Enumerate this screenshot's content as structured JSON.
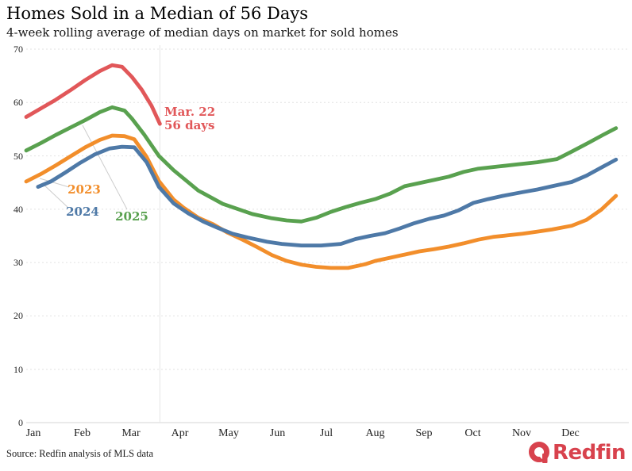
{
  "chart_data": {
    "type": "line",
    "title": "Homes Sold in a Median of 56 Days",
    "subtitle": "4-week rolling average of median days on market for sold homes",
    "xlabel": "",
    "ylabel": "",
    "ylim": [
      0,
      70
    ],
    "yticks": [
      0,
      10,
      20,
      30,
      40,
      50,
      60,
      70
    ],
    "x_months": [
      "Jan",
      "Feb",
      "Mar",
      "Apr",
      "May",
      "Jun",
      "Jul",
      "Aug",
      "Sep",
      "Oct",
      "Nov",
      "Dec"
    ],
    "x_unit": "months (0 = Jan 1, 12 = Dec 31)",
    "grid": "horizontal dotted gridlines; one vertical solid marker line at the latest data date",
    "legend_position": "inline colored year labels near the January-March portion of each line",
    "date_marker_month": 2.72,
    "series": [
      {
        "label": "2023",
        "color": "#F28E2B",
        "points": [
          [
            0,
            45.2
          ],
          [
            0.3,
            46.6
          ],
          [
            0.6,
            48.2
          ],
          [
            0.9,
            49.9
          ],
          [
            1.2,
            51.6
          ],
          [
            1.5,
            53.0
          ],
          [
            1.75,
            53.8
          ],
          [
            2.0,
            53.7
          ],
          [
            2.2,
            53.1
          ],
          [
            2.45,
            49.8
          ],
          [
            2.7,
            45.3
          ],
          [
            3.0,
            41.8
          ],
          [
            3.2,
            40.3
          ],
          [
            3.5,
            38.4
          ],
          [
            3.8,
            37.2
          ],
          [
            4.1,
            35.6
          ],
          [
            4.4,
            34.3
          ],
          [
            4.7,
            32.9
          ],
          [
            5.0,
            31.4
          ],
          [
            5.3,
            30.3
          ],
          [
            5.6,
            29.6
          ],
          [
            5.9,
            29.2
          ],
          [
            6.2,
            29.0
          ],
          [
            6.55,
            29.0
          ],
          [
            6.9,
            29.7
          ],
          [
            7.1,
            30.3
          ],
          [
            7.4,
            30.9
          ],
          [
            7.7,
            31.5
          ],
          [
            8.0,
            32.1
          ],
          [
            8.3,
            32.5
          ],
          [
            8.6,
            33.0
          ],
          [
            8.9,
            33.6
          ],
          [
            9.2,
            34.3
          ],
          [
            9.5,
            34.8
          ],
          [
            9.8,
            35.1
          ],
          [
            10.1,
            35.4
          ],
          [
            10.4,
            35.8
          ],
          [
            10.7,
            36.2
          ],
          [
            11.1,
            36.9
          ],
          [
            11.4,
            38.0
          ],
          [
            11.7,
            39.9
          ],
          [
            12,
            42.5
          ]
        ]
      },
      {
        "label": "2024",
        "color": "#4E79A7",
        "points": [
          [
            0.24,
            44.2
          ],
          [
            0.5,
            45.2
          ],
          [
            0.8,
            46.9
          ],
          [
            1.1,
            48.7
          ],
          [
            1.4,
            50.3
          ],
          [
            1.7,
            51.4
          ],
          [
            1.95,
            51.7
          ],
          [
            2.2,
            51.6
          ],
          [
            2.45,
            48.8
          ],
          [
            2.7,
            44.2
          ],
          [
            3.0,
            41.1
          ],
          [
            3.3,
            39.2
          ],
          [
            3.6,
            37.7
          ],
          [
            3.9,
            36.5
          ],
          [
            4.2,
            35.4
          ],
          [
            4.5,
            34.7
          ],
          [
            4.9,
            33.9
          ],
          [
            5.2,
            33.5
          ],
          [
            5.6,
            33.2
          ],
          [
            6.0,
            33.2
          ],
          [
            6.4,
            33.5
          ],
          [
            6.7,
            34.4
          ],
          [
            7.0,
            35.0
          ],
          [
            7.3,
            35.5
          ],
          [
            7.6,
            36.4
          ],
          [
            7.9,
            37.4
          ],
          [
            8.2,
            38.2
          ],
          [
            8.5,
            38.8
          ],
          [
            8.8,
            39.8
          ],
          [
            9.1,
            41.2
          ],
          [
            9.4,
            41.9
          ],
          [
            9.7,
            42.5
          ],
          [
            10.1,
            43.2
          ],
          [
            10.4,
            43.7
          ],
          [
            10.7,
            44.3
          ],
          [
            11.1,
            45.1
          ],
          [
            11.4,
            46.3
          ],
          [
            11.7,
            47.8
          ],
          [
            12,
            49.3
          ]
        ]
      },
      {
        "label": "2025",
        "color": "#59A14F",
        "points": [
          [
            0,
            51.0
          ],
          [
            0.3,
            52.4
          ],
          [
            0.6,
            53.9
          ],
          [
            0.9,
            55.3
          ],
          [
            1.2,
            56.7
          ],
          [
            1.5,
            58.2
          ],
          [
            1.75,
            59.1
          ],
          [
            2.0,
            58.5
          ],
          [
            2.15,
            57.0
          ],
          [
            2.4,
            54.0
          ],
          [
            2.7,
            50.0
          ],
          [
            3.0,
            47.3
          ],
          [
            3.5,
            43.5
          ],
          [
            4.0,
            41.0
          ],
          [
            4.6,
            39.1
          ],
          [
            5.0,
            38.3
          ],
          [
            5.3,
            37.9
          ],
          [
            5.6,
            37.7
          ],
          [
            5.9,
            38.4
          ],
          [
            6.2,
            39.5
          ],
          [
            6.5,
            40.4
          ],
          [
            6.8,
            41.2
          ],
          [
            7.1,
            41.9
          ],
          [
            7.4,
            42.9
          ],
          [
            7.7,
            44.3
          ],
          [
            8.0,
            44.9
          ],
          [
            8.3,
            45.5
          ],
          [
            8.6,
            46.1
          ],
          [
            8.9,
            47.0
          ],
          [
            9.2,
            47.6
          ],
          [
            9.6,
            48.0
          ],
          [
            10.0,
            48.4
          ],
          [
            10.4,
            48.8
          ],
          [
            10.8,
            49.4
          ],
          [
            11.1,
            50.8
          ],
          [
            11.45,
            52.5
          ],
          [
            11.75,
            54.0
          ],
          [
            12,
            55.2
          ]
        ]
      },
      {
        "label": "",
        "color": "#E15759",
        "points": [
          [
            0,
            57.3
          ],
          [
            0.3,
            58.9
          ],
          [
            0.6,
            60.5
          ],
          [
            0.9,
            62.3
          ],
          [
            1.2,
            64.2
          ],
          [
            1.5,
            65.9
          ],
          [
            1.75,
            67.0
          ],
          [
            1.95,
            66.7
          ],
          [
            2.15,
            64.8
          ],
          [
            2.35,
            62.4
          ],
          [
            2.55,
            59.4
          ],
          [
            2.72,
            56.0
          ]
        ]
      }
    ],
    "end_annotation": {
      "line1": "Mar. 22",
      "line2": "56 days",
      "color": "#E15759"
    }
  },
  "footer": {
    "source": "Source: Redfin analysis of MLS data",
    "logo_text": "Redfin",
    "logo_color": "#D8424D"
  }
}
